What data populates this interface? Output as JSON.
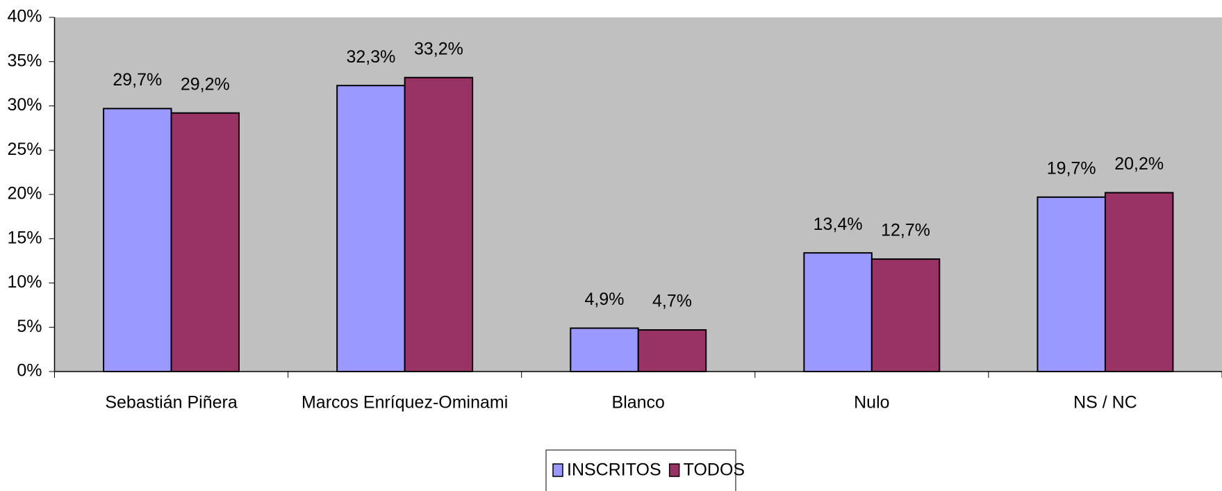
{
  "chart_data": {
    "type": "bar",
    "categories": [
      "Sebastián Piñera",
      "Marcos Enríquez-Ominami",
      "Blanco",
      "Nulo",
      "NS / NC"
    ],
    "series": [
      {
        "name": "INSCRITOS",
        "color": "#9999ff",
        "values": [
          29.7,
          32.3,
          4.9,
          13.4,
          19.7
        ],
        "value_labels": [
          "29,7%",
          "32,3%",
          "4,9%",
          "13,4%",
          "19,7%"
        ]
      },
      {
        "name": "TODOS",
        "color": "#993366",
        "values": [
          29.2,
          33.2,
          4.7,
          12.7,
          20.2
        ],
        "value_labels": [
          "29,2%",
          "33,2%",
          "4,7%",
          "12,7%",
          "20,2%"
        ]
      }
    ],
    "ylim": [
      0,
      40
    ],
    "yticks": [
      {
        "value": 0,
        "label": "0%"
      },
      {
        "value": 5,
        "label": "5%"
      },
      {
        "value": 10,
        "label": "10%"
      },
      {
        "value": 15,
        "label": "15%"
      },
      {
        "value": 20,
        "label": "20%"
      },
      {
        "value": 25,
        "label": "25%"
      },
      {
        "value": 30,
        "label": "30%"
      },
      {
        "value": 35,
        "label": "35%"
      },
      {
        "value": 40,
        "label": "40%"
      }
    ],
    "grid": false,
    "legend": "bottom"
  }
}
